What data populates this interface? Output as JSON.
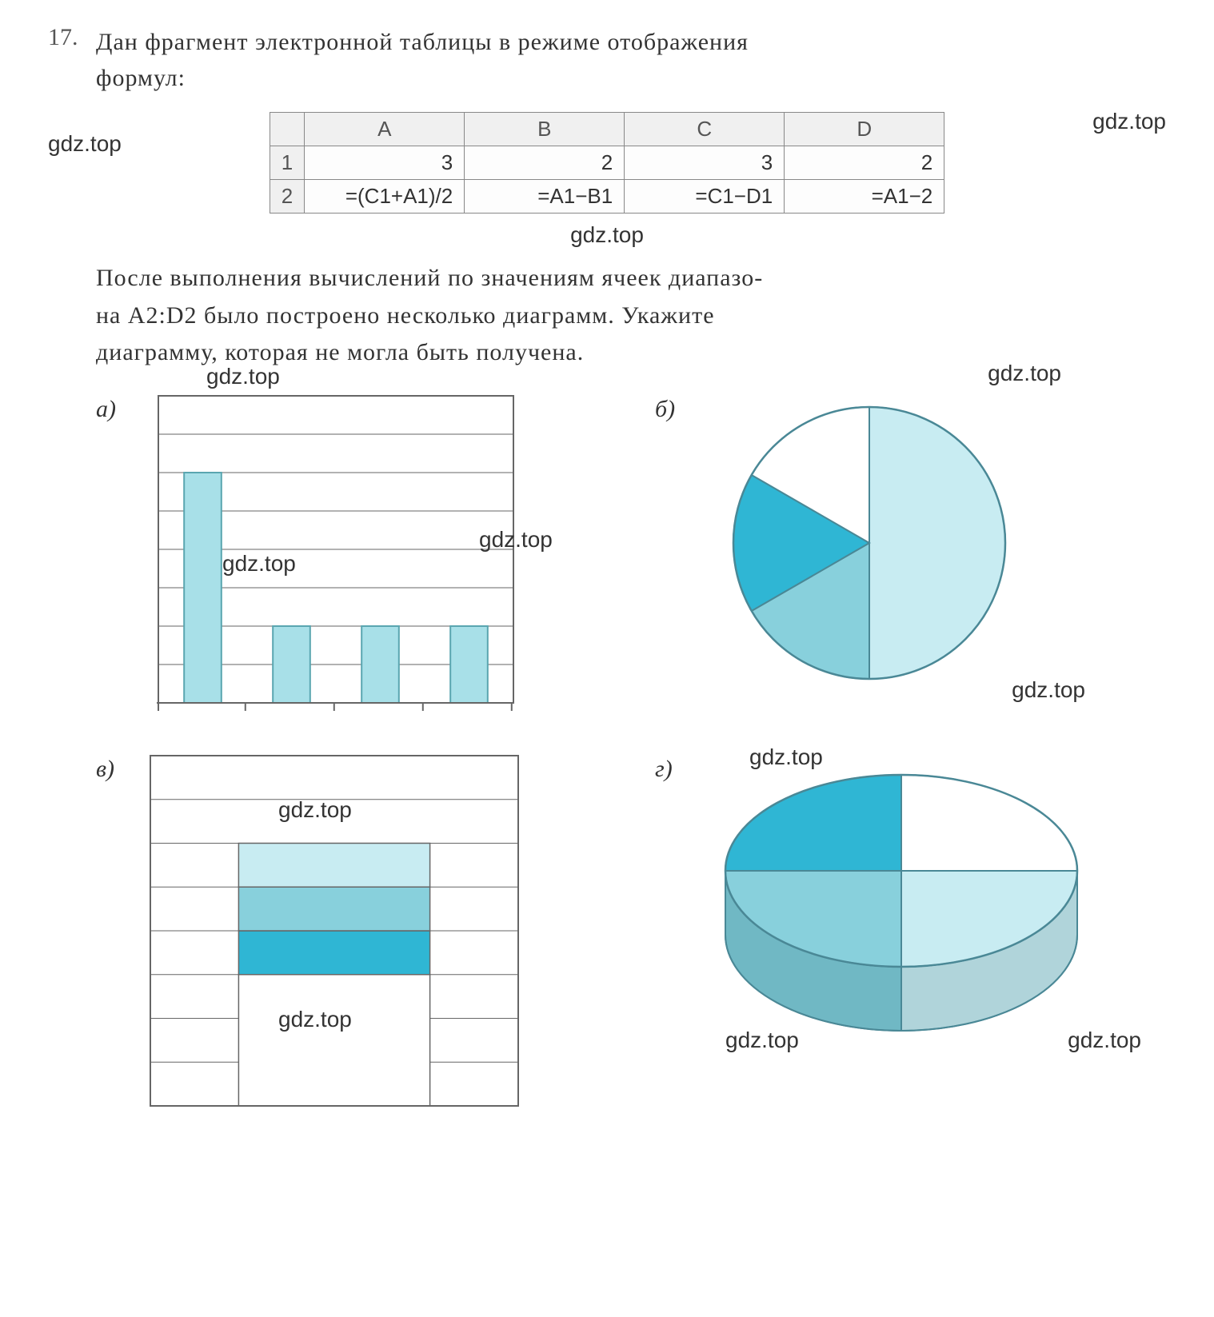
{
  "problem": {
    "number": "17.",
    "text_line1": "Дан  фрагмент  электронной  таблицы  в  режиме  отображения",
    "text_line2": "формул:"
  },
  "watermarks": {
    "text": "gdz.top"
  },
  "spreadsheet": {
    "columns": [
      "A",
      "B",
      "C",
      "D"
    ],
    "row_heads": [
      "1",
      "2"
    ],
    "rows": [
      [
        "3",
        "2",
        "3",
        "2"
      ],
      [
        "=(C1+A1)/2",
        "=A1−B1",
        "=C1−D1",
        "=A1−2"
      ]
    ],
    "header_bg": "#f0f0f0",
    "border": "#888888"
  },
  "description": {
    "line1": "После  выполнения  вычислений  по  значениям  ячеек диапазо-",
    "line2": "на  A2:D2  было  построено  несколько  диаграмм.  Укажите",
    "line3": "диаграмму, которая не могла быть получена."
  },
  "charts": {
    "a": {
      "label": "а)",
      "type": "bar",
      "values": [
        6,
        2,
        2,
        2
      ],
      "bar_color": "#a8e0e8",
      "bar_stroke": "#5aa6b0",
      "grid_color": "#666666",
      "gridlines": 8,
      "bg": "#ffffff"
    },
    "b": {
      "label": "б)",
      "type": "pie",
      "slices": [
        {
          "value": 3,
          "color": "#c8ecf2"
        },
        {
          "value": 1,
          "color": "#88d0dc"
        },
        {
          "value": 1,
          "color": "#2fb6d4"
        },
        {
          "value": 1,
          "color": "#ffffff"
        }
      ],
      "stroke": "#4a8896"
    },
    "c": {
      "label": "в)",
      "type": "stacked_bar",
      "segments": [
        {
          "value": 3,
          "color": "#ffffff"
        },
        {
          "value": 1,
          "color": "#2fb6d4"
        },
        {
          "value": 1,
          "color": "#88d0dc"
        },
        {
          "value": 1,
          "color": "#c8ecf2"
        }
      ],
      "grid_color": "#666666",
      "gridlines": 8,
      "bg": "#ffffff"
    },
    "d": {
      "label": "г)",
      "type": "pie_3d",
      "slices": [
        {
          "value": 1,
          "color": "#ffffff"
        },
        {
          "value": 1,
          "color": "#c8ecf2"
        },
        {
          "value": 1,
          "color": "#88d0dc"
        },
        {
          "value": 1,
          "color": "#2fb6d4"
        }
      ],
      "stroke": "#4a8896",
      "side_shade": "#3a94a8"
    }
  }
}
